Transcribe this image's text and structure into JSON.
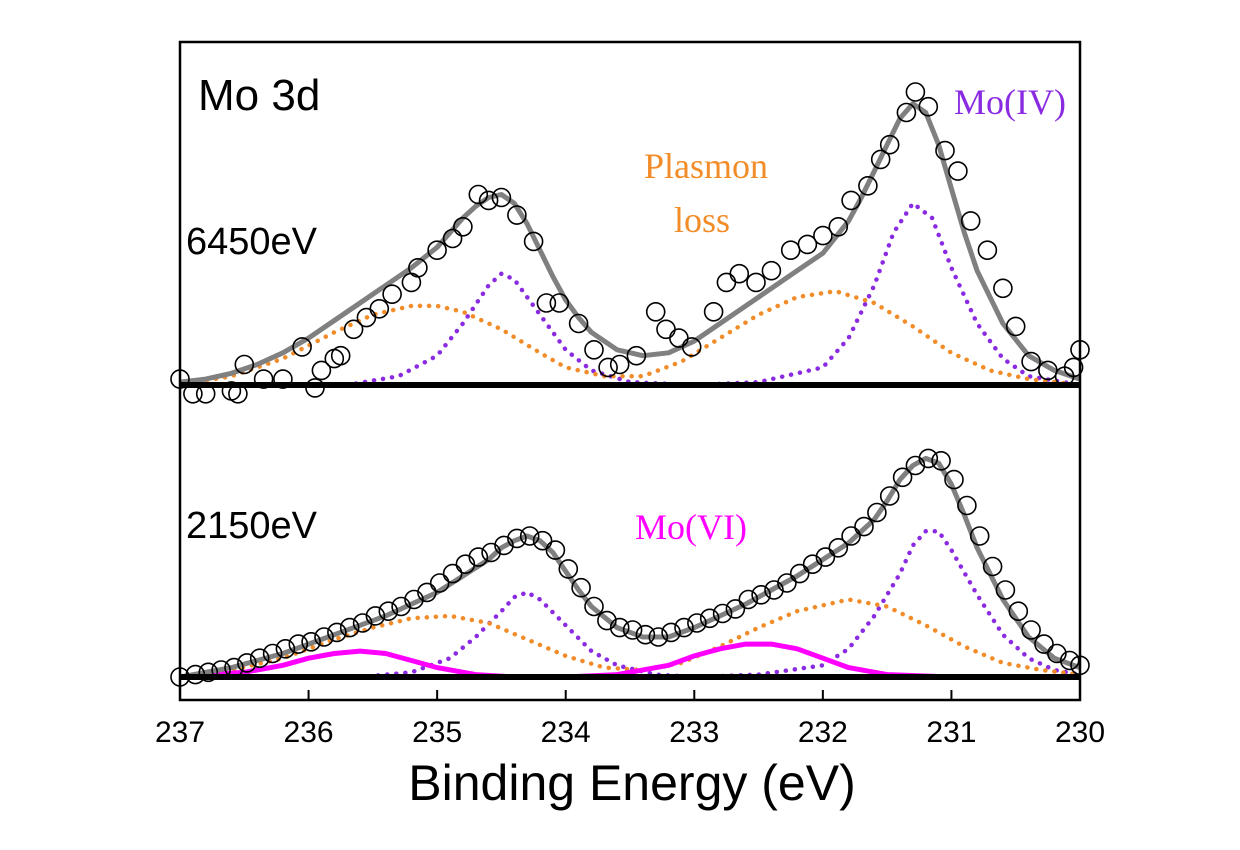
{
  "chart_data": {
    "type": "line",
    "title": "Mo 3d",
    "xlabel": "Binding Energy (eV)",
    "xlim": [
      237,
      230
    ],
    "x_reversed": true,
    "x_ticks": [
      "237",
      "236",
      "235",
      "234",
      "233",
      "232",
      "231",
      "230"
    ],
    "y_ticks_shown": false,
    "grid": false,
    "colors": {
      "data": "#000000",
      "fit": "#808080",
      "mo_iv": "#8a2be2",
      "plasmon": "#f28c28",
      "mo_vi": "#ff00ff",
      "frame": "#000000"
    },
    "panels": [
      {
        "label": "6450eV",
        "annotations": [
          {
            "text": "Mo(IV)",
            "color": "#8a2be2"
          },
          {
            "text": "Plasmon",
            "color": "#f28c28"
          },
          {
            "text": "loss",
            "color": "#f28c28"
          }
        ],
        "ylim": [
          -0.05,
          1.0
        ],
        "data_points": [
          [
            237.0,
            0.02
          ],
          [
            236.9,
            -0.03
          ],
          [
            236.8,
            -0.03
          ],
          [
            236.6,
            -0.02
          ],
          [
            236.55,
            -0.03
          ],
          [
            236.5,
            0.07
          ],
          [
            236.35,
            0.02
          ],
          [
            236.2,
            0.02
          ],
          [
            236.05,
            0.13
          ],
          [
            235.95,
            -0.01
          ],
          [
            235.9,
            0.05
          ],
          [
            235.8,
            0.09
          ],
          [
            235.75,
            0.1
          ],
          [
            235.65,
            0.19
          ],
          [
            235.55,
            0.23
          ],
          [
            235.45,
            0.26
          ],
          [
            235.35,
            0.31
          ],
          [
            235.2,
            0.35
          ],
          [
            235.15,
            0.4
          ],
          [
            235.0,
            0.46
          ],
          [
            234.88,
            0.5
          ],
          [
            234.8,
            0.54
          ],
          [
            234.68,
            0.65
          ],
          [
            234.6,
            0.63
          ],
          [
            234.5,
            0.64
          ],
          [
            234.38,
            0.58
          ],
          [
            234.25,
            0.49
          ],
          [
            234.15,
            0.28
          ],
          [
            234.05,
            0.28
          ],
          [
            233.9,
            0.21
          ],
          [
            233.78,
            0.12
          ],
          [
            233.67,
            0.06
          ],
          [
            233.58,
            0.07
          ],
          [
            233.45,
            0.1
          ],
          [
            233.3,
            0.25
          ],
          [
            233.22,
            0.19
          ],
          [
            233.12,
            0.16
          ],
          [
            233.02,
            0.13
          ],
          [
            232.85,
            0.25
          ],
          [
            232.75,
            0.35
          ],
          [
            232.65,
            0.38
          ],
          [
            232.52,
            0.35
          ],
          [
            232.4,
            0.39
          ],
          [
            232.25,
            0.46
          ],
          [
            232.12,
            0.48
          ],
          [
            232.0,
            0.51
          ],
          [
            231.88,
            0.54
          ],
          [
            231.78,
            0.63
          ],
          [
            231.65,
            0.68
          ],
          [
            231.55,
            0.77
          ],
          [
            231.48,
            0.82
          ],
          [
            231.35,
            0.93
          ],
          [
            231.28,
            1.0
          ],
          [
            231.18,
            0.95
          ],
          [
            231.05,
            0.8
          ],
          [
            230.95,
            0.73
          ],
          [
            230.85,
            0.56
          ],
          [
            230.72,
            0.46
          ],
          [
            230.6,
            0.33
          ],
          [
            230.5,
            0.2
          ],
          [
            230.38,
            0.08
          ],
          [
            230.25,
            0.05
          ],
          [
            230.12,
            0.03
          ],
          [
            230.05,
            0.06
          ],
          [
            230.0,
            0.12
          ]
        ],
        "fit": {
          "name": "fit",
          "x": [
            237.0,
            236.8,
            236.6,
            236.4,
            236.2,
            236.0,
            235.8,
            235.6,
            235.4,
            235.2,
            235.0,
            234.9,
            234.8,
            234.7,
            234.6,
            234.5,
            234.4,
            234.3,
            234.2,
            234.1,
            234.0,
            233.9,
            233.8,
            233.6,
            233.4,
            233.2,
            233.0,
            232.8,
            232.6,
            232.4,
            232.2,
            232.0,
            231.8,
            231.7,
            231.6,
            231.5,
            231.4,
            231.3,
            231.2,
            231.1,
            231.0,
            230.9,
            230.8,
            230.6,
            230.4,
            230.2,
            230.0
          ],
          "values": [
            0.01,
            0.02,
            0.04,
            0.07,
            0.11,
            0.16,
            0.22,
            0.28,
            0.34,
            0.4,
            0.47,
            0.52,
            0.57,
            0.61,
            0.64,
            0.65,
            0.62,
            0.55,
            0.46,
            0.37,
            0.29,
            0.23,
            0.18,
            0.12,
            0.1,
            0.11,
            0.15,
            0.21,
            0.27,
            0.33,
            0.39,
            0.45,
            0.56,
            0.64,
            0.73,
            0.82,
            0.91,
            0.96,
            0.93,
            0.82,
            0.67,
            0.52,
            0.39,
            0.21,
            0.1,
            0.05,
            0.02
          ]
        },
        "components": [
          {
            "name": "Mo(IV)",
            "style": "dotted",
            "color": "#8a2be2",
            "x": [
              235.7,
              235.3,
              235.0,
              234.8,
              234.6,
              234.5,
              234.4,
              234.2,
              234.0,
              233.8,
              233.5,
              233.0,
              232.5,
              232.0,
              231.8,
              231.6,
              231.45,
              231.3,
              231.15,
              231.0,
              230.8,
              230.6,
              230.4,
              230.0
            ],
            "values": [
              0.0,
              0.03,
              0.1,
              0.21,
              0.34,
              0.38,
              0.36,
              0.24,
              0.12,
              0.05,
              0.01,
              0.0,
              0.01,
              0.06,
              0.16,
              0.34,
              0.52,
              0.62,
              0.57,
              0.4,
              0.21,
              0.09,
              0.03,
              0.0
            ]
          },
          {
            "name": "Plasmon loss",
            "style": "dotted",
            "color": "#f28c28",
            "x": [
              237.0,
              236.6,
              236.2,
              235.8,
              235.5,
              235.2,
              235.0,
              234.8,
              234.5,
              234.2,
              234.0,
              233.7,
              233.4,
              233.1,
              232.8,
              232.5,
              232.2,
              231.9,
              231.6,
              231.3,
              231.0,
              230.7,
              230.4,
              230.0
            ],
            "values": [
              0.0,
              0.03,
              0.09,
              0.18,
              0.24,
              0.27,
              0.27,
              0.25,
              0.19,
              0.11,
              0.06,
              0.03,
              0.03,
              0.08,
              0.16,
              0.24,
              0.3,
              0.32,
              0.28,
              0.2,
              0.11,
              0.05,
              0.02,
              0.0
            ]
          }
        ]
      },
      {
        "label": "2150eV",
        "annotations": [
          {
            "text": "Mo(VI)",
            "color": "#ff00ff"
          }
        ],
        "ylim": [
          -0.05,
          1.0
        ],
        "data_points": [
          [
            237.0,
            0.0
          ],
          [
            236.88,
            0.01
          ],
          [
            236.78,
            0.02
          ],
          [
            236.68,
            0.03
          ],
          [
            236.58,
            0.04
          ],
          [
            236.48,
            0.06
          ],
          [
            236.38,
            0.08
          ],
          [
            236.28,
            0.1
          ],
          [
            236.18,
            0.12
          ],
          [
            236.08,
            0.14
          ],
          [
            235.98,
            0.15
          ],
          [
            235.88,
            0.17
          ],
          [
            235.78,
            0.19
          ],
          [
            235.68,
            0.21
          ],
          [
            235.58,
            0.23
          ],
          [
            235.48,
            0.26
          ],
          [
            235.38,
            0.28
          ],
          [
            235.28,
            0.3
          ],
          [
            235.18,
            0.33
          ],
          [
            235.08,
            0.36
          ],
          [
            234.98,
            0.4
          ],
          [
            234.88,
            0.44
          ],
          [
            234.78,
            0.48
          ],
          [
            234.68,
            0.51
          ],
          [
            234.58,
            0.53
          ],
          [
            234.48,
            0.56
          ],
          [
            234.38,
            0.59
          ],
          [
            234.28,
            0.6
          ],
          [
            234.18,
            0.58
          ],
          [
            234.08,
            0.54
          ],
          [
            233.98,
            0.46
          ],
          [
            233.88,
            0.38
          ],
          [
            233.78,
            0.3
          ],
          [
            233.68,
            0.24
          ],
          [
            233.58,
            0.21
          ],
          [
            233.48,
            0.2
          ],
          [
            233.38,
            0.18
          ],
          [
            233.28,
            0.17
          ],
          [
            233.18,
            0.19
          ],
          [
            233.08,
            0.21
          ],
          [
            232.98,
            0.23
          ],
          [
            232.88,
            0.25
          ],
          [
            232.78,
            0.27
          ],
          [
            232.68,
            0.29
          ],
          [
            232.58,
            0.33
          ],
          [
            232.48,
            0.35
          ],
          [
            232.38,
            0.37
          ],
          [
            232.28,
            0.4
          ],
          [
            232.18,
            0.44
          ],
          [
            232.08,
            0.48
          ],
          [
            231.98,
            0.51
          ],
          [
            231.88,
            0.55
          ],
          [
            231.78,
            0.6
          ],
          [
            231.68,
            0.64
          ],
          [
            231.58,
            0.7
          ],
          [
            231.48,
            0.77
          ],
          [
            231.38,
            0.85
          ],
          [
            231.28,
            0.9
          ],
          [
            231.18,
            0.93
          ],
          [
            231.08,
            0.92
          ],
          [
            230.98,
            0.84
          ],
          [
            230.88,
            0.73
          ],
          [
            230.78,
            0.6
          ],
          [
            230.68,
            0.47
          ],
          [
            230.58,
            0.37
          ],
          [
            230.48,
            0.28
          ],
          [
            230.38,
            0.2
          ],
          [
            230.28,
            0.14
          ],
          [
            230.18,
            0.1
          ],
          [
            230.08,
            0.07
          ],
          [
            230.0,
            0.05
          ]
        ],
        "fit": {
          "name": "fit",
          "x": [
            237.0,
            236.8,
            236.6,
            236.4,
            236.2,
            236.0,
            235.8,
            235.6,
            235.4,
            235.2,
            235.0,
            234.8,
            234.6,
            234.5,
            234.4,
            234.3,
            234.2,
            234.1,
            234.0,
            233.9,
            233.8,
            233.6,
            233.4,
            233.2,
            233.0,
            232.8,
            232.6,
            232.4,
            232.2,
            232.0,
            231.8,
            231.6,
            231.5,
            231.4,
            231.3,
            231.2,
            231.1,
            231.0,
            230.9,
            230.8,
            230.6,
            230.4,
            230.2,
            230.0
          ],
          "values": [
            0.0,
            0.02,
            0.04,
            0.07,
            0.1,
            0.14,
            0.18,
            0.22,
            0.26,
            0.31,
            0.36,
            0.43,
            0.5,
            0.55,
            0.58,
            0.6,
            0.58,
            0.53,
            0.45,
            0.37,
            0.3,
            0.21,
            0.17,
            0.17,
            0.21,
            0.26,
            0.31,
            0.37,
            0.43,
            0.5,
            0.57,
            0.67,
            0.75,
            0.84,
            0.9,
            0.93,
            0.91,
            0.82,
            0.69,
            0.55,
            0.33,
            0.17,
            0.08,
            0.04
          ]
        },
        "components": [
          {
            "name": "Mo(IV)",
            "style": "dotted",
            "color": "#8a2be2",
            "x": [
              235.6,
              235.2,
              234.9,
              234.7,
              234.5,
              234.4,
              234.3,
              234.2,
              234.0,
              233.8,
              233.6,
              233.3,
              233.0,
              232.5,
              232.0,
              231.8,
              231.6,
              231.4,
              231.3,
              231.2,
              231.1,
              231.0,
              230.8,
              230.6,
              230.4,
              230.2,
              230.0
            ],
            "values": [
              0.0,
              0.02,
              0.08,
              0.17,
              0.28,
              0.34,
              0.36,
              0.33,
              0.22,
              0.11,
              0.05,
              0.01,
              0.0,
              0.01,
              0.05,
              0.12,
              0.26,
              0.44,
              0.56,
              0.62,
              0.62,
              0.54,
              0.35,
              0.18,
              0.08,
              0.03,
              0.01
            ]
          },
          {
            "name": "Plasmon loss",
            "style": "dotted",
            "color": "#f28c28",
            "x": [
              237.0,
              236.6,
              236.2,
              235.8,
              235.5,
              235.2,
              234.9,
              234.6,
              234.3,
              234.0,
              233.7,
              233.4,
              233.1,
              232.8,
              232.5,
              232.2,
              231.8,
              231.5,
              231.2,
              230.9,
              230.6,
              230.3,
              230.0
            ],
            "values": [
              0.0,
              0.03,
              0.08,
              0.16,
              0.21,
              0.25,
              0.26,
              0.23,
              0.16,
              0.09,
              0.04,
              0.03,
              0.06,
              0.13,
              0.21,
              0.28,
              0.33,
              0.3,
              0.22,
              0.13,
              0.06,
              0.03,
              0.01
            ]
          },
          {
            "name": "Mo(VI)",
            "style": "solid",
            "color": "#ff00ff",
            "x": [
              237.0,
              236.5,
              236.2,
              236.0,
              235.8,
              235.6,
              235.4,
              235.2,
              235.0,
              234.7,
              234.4,
              234.0,
              233.6,
              233.2,
              233.0,
              232.8,
              232.6,
              232.4,
              232.2,
              232.0,
              231.8,
              231.5,
              231.0,
              230.5
            ],
            "values": [
              0.0,
              0.02,
              0.05,
              0.08,
              0.1,
              0.11,
              0.1,
              0.07,
              0.04,
              0.01,
              0.0,
              0.0,
              0.01,
              0.05,
              0.09,
              0.12,
              0.14,
              0.14,
              0.12,
              0.08,
              0.04,
              0.01,
              0.0,
              0.0
            ]
          }
        ]
      }
    ]
  }
}
